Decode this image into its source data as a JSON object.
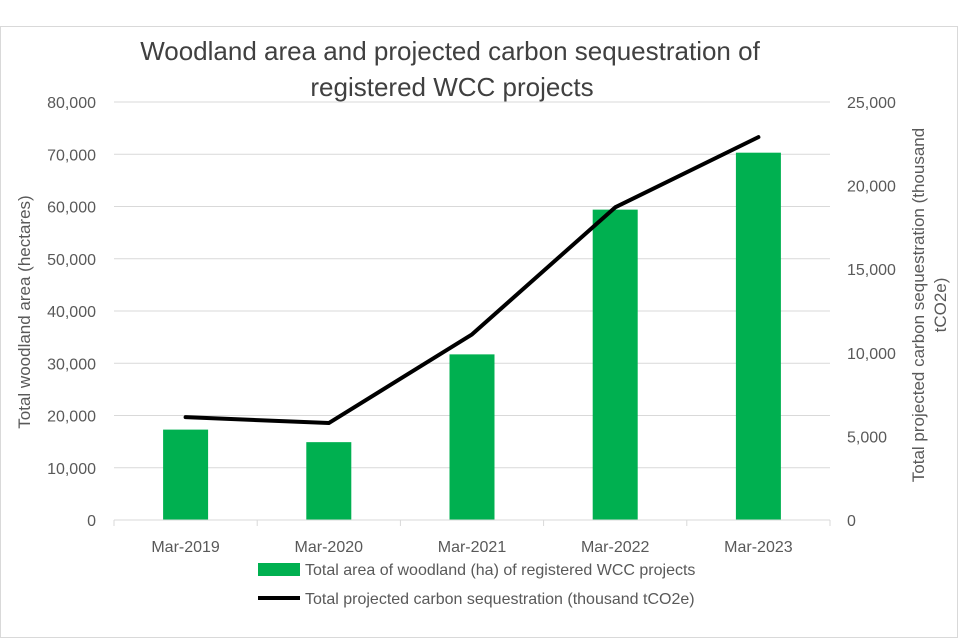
{
  "chart_data": {
    "type": "bar",
    "title_lines": [
      "Woodland area and projected carbon sequestration of",
      "registered WCC projects"
    ],
    "categories": [
      "Mar-2019",
      "Mar-2020",
      "Mar-2021",
      "Mar-2022",
      "Mar-2023"
    ],
    "series": [
      {
        "name": "Total area of woodland (ha) of registered WCC projects",
        "type": "bar",
        "axis": "left",
        "color": "#00b050",
        "values": [
          17300,
          14900,
          31700,
          59400,
          70300
        ]
      },
      {
        "name": "Total projected carbon sequestration (thousand tCO2e)",
        "type": "line",
        "axis": "right",
        "color": "#000000",
        "values": [
          6150,
          5800,
          11100,
          18700,
          22900
        ]
      }
    ],
    "y_left": {
      "label": "Total woodland area (hectares)",
      "ylim": [
        0,
        80000
      ],
      "ticks": [
        "0",
        "10,000",
        "20,000",
        "30,000",
        "40,000",
        "50,000",
        "60,000",
        "70,000",
        "80,000"
      ]
    },
    "y_right": {
      "label_lines": [
        "Total projected carbon sequestration (thousand",
        "tCO2e)"
      ],
      "ylim": [
        0,
        25000
      ],
      "ticks": [
        "0",
        "5,000",
        "10,000",
        "15,000",
        "20,000",
        "25,000"
      ]
    },
    "grid": true,
    "legend_position": "bottom"
  }
}
